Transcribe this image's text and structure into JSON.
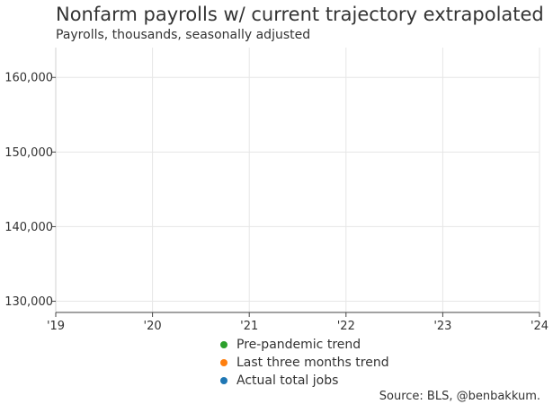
{
  "chart_data": {
    "type": "line",
    "title": "Nonfarm payrolls w/ current trajectory extrapolated",
    "subtitle": "Payrolls, thousands, seasonally adjusted",
    "x_tick_labels": [
      "'19",
      "'20",
      "'21",
      "'22",
      "'23",
      "'24"
    ],
    "x_ticks": [
      2019,
      2020,
      2021,
      2022,
      2023,
      2024
    ],
    "xlim": [
      2019,
      2024
    ],
    "y_ticks": [
      130000,
      140000,
      150000,
      160000
    ],
    "y_tick_labels": [
      "130,000",
      "140,000",
      "150,000",
      "160,000"
    ],
    "ylim": [
      128500,
      164000
    ],
    "grid": true,
    "legend_position": "bottom",
    "series": [
      {
        "name": "Pre-pandemic trend",
        "color": "#2ca02c",
        "values": []
      },
      {
        "name": "Last three months trend",
        "color": "#ff7f0e",
        "values": []
      },
      {
        "name": "Actual total jobs",
        "color": "#1f77b4",
        "values": []
      }
    ],
    "source": "Source: BLS, @benbakkum."
  }
}
